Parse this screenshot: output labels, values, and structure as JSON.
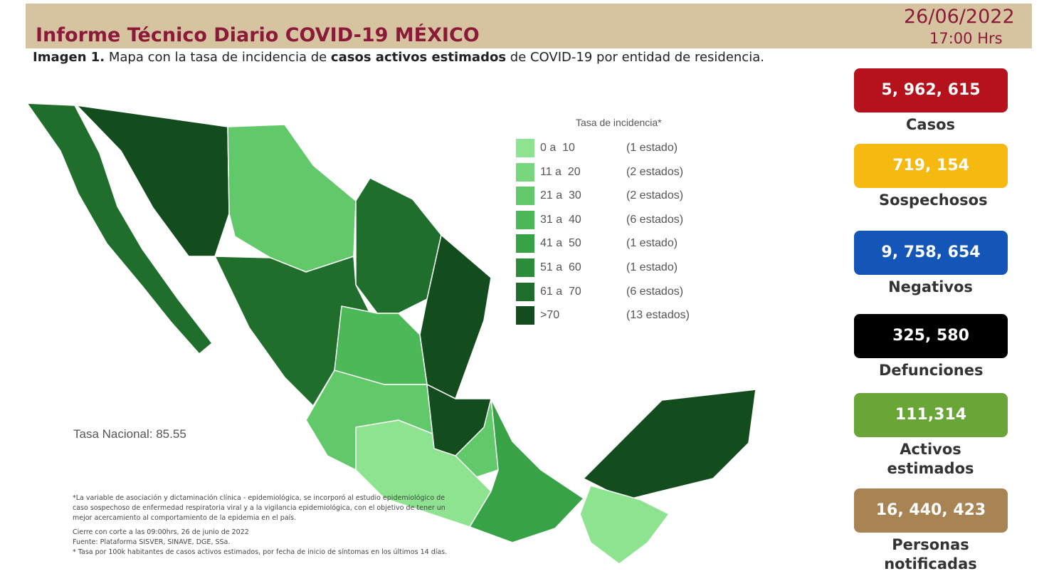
{
  "header": {
    "title": "Informe Técnico Diario COVID-19 MÉXICO",
    "date": "26/06/2022",
    "time": "17:00 Hrs"
  },
  "caption": [
    "Imagen 1.",
    " Mapa con la tasa de incidencia de ",
    "casos activos estimados",
    " de COVID-19 por entidad de residencia."
  ],
  "legend": {
    "title": "Tasa de incidencia*",
    "items": [
      {
        "range": "0 a  10",
        "count": "(1 estado)",
        "color": "#8de38f"
      },
      {
        "range": "11 a  20",
        "count": "(2 estados)",
        "color": "#78d77d"
      },
      {
        "range": "21 a  30",
        "count": "(2 estados)",
        "color": "#62c96b"
      },
      {
        "range": "31 a  40",
        "count": "(6 estados)",
        "color": "#4cb858"
      },
      {
        "range": "41 a  50",
        "count": "(1 estado)",
        "color": "#38a346"
      },
      {
        "range": "51 a  60",
        "count": "(1 estado)",
        "color": "#2b8c3a"
      },
      {
        "range": "61 a  70",
        "count": "(6 estados)",
        "color": "#1f6e2c"
      },
      {
        "range": ">70",
        "count": "(13 estados)",
        "color": "#134d1e"
      }
    ]
  },
  "national_rate": "Tasa Nacional: 85.55",
  "footnotes": [
    "*La variable de asociación y dictaminación clínica - epidemiológica, se incorporó al estudio epidemiológico de caso sospechoso de enfermedad respiratoria viral y a la vigilancia epidemiológica, con el objetivo de tener un mejor acercamiento al comportamiento de la epidemia en el país.",
    "Cierre con corte a las 09:00hrs, 26 de junio de 2022",
    "Fuente: Plataforma SISVER, SINAVE, DGE, SSa.",
    "* Tasa por 100k habitantes de casos activos estimados, por fecha de inicio de síntomas en los últimos 14 días."
  ],
  "stats": [
    {
      "value": "5, 962, 615",
      "label": "Casos",
      "color": "#b5121b"
    },
    {
      "value": "719, 154",
      "label": "Sospechosos",
      "color": "#f5b90f"
    },
    {
      "value": "9, 758, 654",
      "label": "Negativos",
      "color": "#1455b8"
    },
    {
      "value": "325, 580",
      "label": "Defunciones",
      "color": "#000000"
    },
    {
      "value": "111,314",
      "label": "Activos estimados",
      "color": "#6aa538"
    },
    {
      "value": "16, 440, 423",
      "label": "Personas notificadas",
      "color": "#a88455"
    }
  ]
}
